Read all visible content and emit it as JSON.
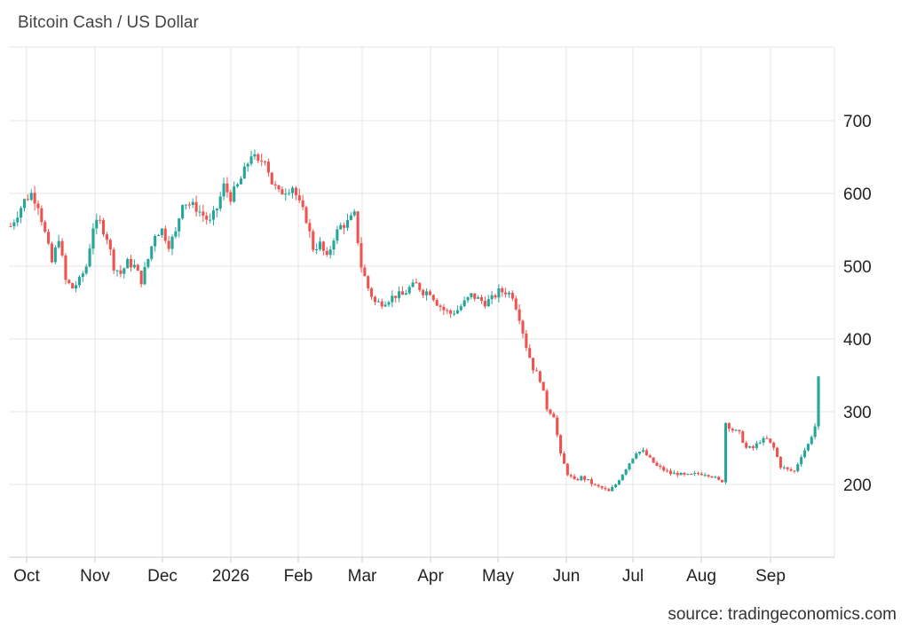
{
  "chart_title": "Bitcoin Cash / US Dollar",
  "source": "source: tradingeconomics.com",
  "colors": {
    "up": "#26a69a",
    "down": "#ef5350",
    "grid": "#e6e6e6",
    "axis": "#cccccc"
  },
  "chart_data": {
    "type": "candlestick",
    "title": "Bitcoin Cash / US Dollar",
    "y_axis_position": "right",
    "ylim": [
      100,
      800
    ],
    "yticks": [
      200,
      300,
      400,
      500,
      600,
      700
    ],
    "x_ticks": [
      "Oct",
      "Nov",
      "Dec",
      "2026",
      "Feb",
      "Mar",
      "Apr",
      "May",
      "Jun",
      "Jul",
      "Aug",
      "Sep"
    ],
    "grid": true,
    "anchors": [
      [
        0,
        555
      ],
      [
        4,
        590
      ],
      [
        6,
        600
      ],
      [
        8,
        585
      ],
      [
        10,
        545
      ],
      [
        12,
        505
      ],
      [
        14,
        540
      ],
      [
        16,
        480
      ],
      [
        18,
        470
      ],
      [
        20,
        480
      ],
      [
        22,
        500
      ],
      [
        24,
        555
      ],
      [
        26,
        560
      ],
      [
        28,
        540
      ],
      [
        30,
        500
      ],
      [
        32,
        490
      ],
      [
        34,
        505
      ],
      [
        36,
        500
      ],
      [
        38,
        480
      ],
      [
        40,
        510
      ],
      [
        42,
        545
      ],
      [
        44,
        550
      ],
      [
        46,
        530
      ],
      [
        48,
        545
      ],
      [
        50,
        590
      ],
      [
        52,
        585
      ],
      [
        54,
        580
      ],
      [
        56,
        570
      ],
      [
        58,
        560
      ],
      [
        60,
        580
      ],
      [
        62,
        610
      ],
      [
        64,
        595
      ],
      [
        66,
        610
      ],
      [
        68,
        630
      ],
      [
        70,
        655
      ],
      [
        72,
        640
      ],
      [
        74,
        650
      ],
      [
        76,
        615
      ],
      [
        78,
        600
      ],
      [
        80,
        605
      ],
      [
        82,
        610
      ],
      [
        84,
        585
      ],
      [
        86,
        565
      ],
      [
        88,
        525
      ],
      [
        90,
        530
      ],
      [
        92,
        510
      ],
      [
        94,
        540
      ],
      [
        96,
        555
      ],
      [
        98,
        560
      ],
      [
        100,
        570
      ],
      [
        102,
        500
      ],
      [
        104,
        470
      ],
      [
        106,
        450
      ],
      [
        108,
        450
      ],
      [
        110,
        455
      ],
      [
        112,
        460
      ],
      [
        114,
        460
      ],
      [
        116,
        470
      ],
      [
        118,
        475
      ],
      [
        120,
        465
      ],
      [
        122,
        465
      ],
      [
        124,
        450
      ],
      [
        126,
        440
      ],
      [
        128,
        435
      ],
      [
        130,
        440
      ],
      [
        132,
        450
      ],
      [
        134,
        460
      ],
      [
        136,
        455
      ],
      [
        138,
        450
      ],
      [
        140,
        455
      ],
      [
        142,
        465
      ],
      [
        144,
        465
      ],
      [
        146,
        460
      ],
      [
        148,
        430
      ],
      [
        150,
        390
      ],
      [
        152,
        360
      ],
      [
        154,
        345
      ],
      [
        156,
        305
      ],
      [
        158,
        295
      ],
      [
        160,
        240
      ],
      [
        162,
        215
      ],
      [
        164,
        205
      ],
      [
        166,
        210
      ],
      [
        168,
        205
      ],
      [
        170,
        198
      ],
      [
        172,
        195
      ],
      [
        174,
        190
      ],
      [
        176,
        200
      ],
      [
        178,
        215
      ],
      [
        180,
        230
      ],
      [
        182,
        245
      ],
      [
        184,
        245
      ],
      [
        186,
        235
      ],
      [
        188,
        225
      ],
      [
        190,
        220
      ],
      [
        192,
        215
      ],
      [
        194,
        215
      ],
      [
        196,
        212
      ],
      [
        198,
        213
      ],
      [
        200,
        215
      ],
      [
        202,
        215
      ],
      [
        204,
        212
      ],
      [
        206,
        205
      ],
      [
        207,
        205
      ],
      [
        208,
        285
      ],
      [
        210,
        275
      ],
      [
        212,
        270
      ],
      [
        214,
        250
      ],
      [
        216,
        250
      ],
      [
        218,
        260
      ],
      [
        220,
        262
      ],
      [
        222,
        250
      ],
      [
        224,
        225
      ],
      [
        226,
        220
      ],
      [
        228,
        218
      ],
      [
        230,
        240
      ],
      [
        232,
        255
      ],
      [
        234,
        280
      ],
      [
        235,
        345
      ]
    ],
    "n_days": 236
  }
}
